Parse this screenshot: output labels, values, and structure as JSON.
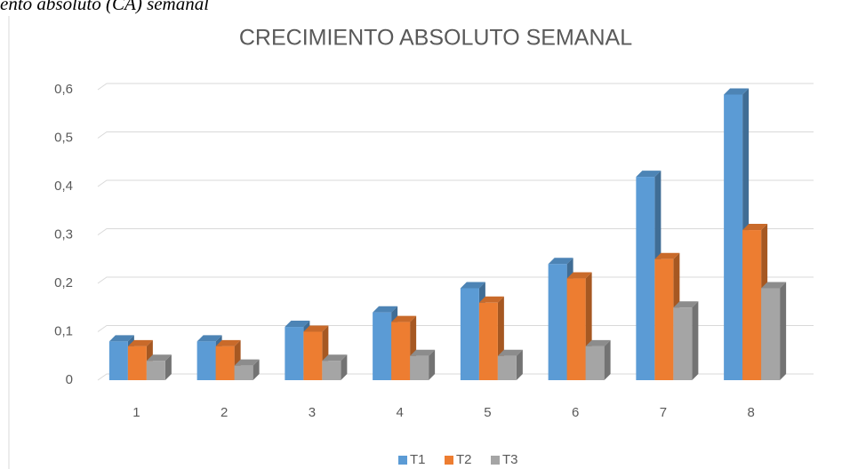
{
  "caption": "ento absoluto (CA) semanal",
  "chart_data": {
    "type": "bar3d",
    "title": "CRECIMIENTO ABSOLUTO SEMANAL",
    "categories": [
      "1",
      "2",
      "3",
      "4",
      "5",
      "6",
      "7",
      "8"
    ],
    "series": [
      {
        "name": "T1",
        "color": "#5b9bd5",
        "values": [
          0.08,
          0.08,
          0.11,
          0.14,
          0.19,
          0.24,
          0.42,
          0.59
        ]
      },
      {
        "name": "T2",
        "color": "#ed7d31",
        "values": [
          0.07,
          0.07,
          0.1,
          0.12,
          0.16,
          0.21,
          0.25,
          0.31
        ]
      },
      {
        "name": "T3",
        "color": "#a5a5a5",
        "values": [
          0.04,
          0.03,
          0.04,
          0.05,
          0.05,
          0.07,
          0.15,
          0.19
        ]
      }
    ],
    "ylim": [
      0,
      0.6
    ],
    "yticks": [
      0,
      {
        "value": 0.1,
        "label": "0,1"
      },
      {
        "value": 0.2,
        "label": "0,2"
      },
      {
        "value": 0.3,
        "label": "0,3"
      },
      {
        "value": 0.4,
        "label": "0,4"
      },
      {
        "value": 0.5,
        "label": "0,5"
      },
      {
        "value": 0.6,
        "label": "0,6"
      }
    ],
    "grid": true,
    "legend": "bottom"
  }
}
